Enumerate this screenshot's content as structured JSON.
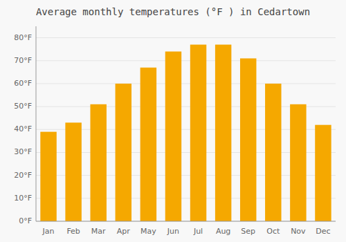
{
  "chart_data": {
    "type": "bar",
    "title": "Average monthly temperatures (°F ) in Cedartown",
    "categories": [
      "Jan",
      "Feb",
      "Mar",
      "Apr",
      "May",
      "Jun",
      "Jul",
      "Aug",
      "Sep",
      "Oct",
      "Nov",
      "Dec"
    ],
    "values": [
      39,
      43,
      51,
      60,
      67,
      74,
      77,
      77,
      71,
      60,
      51,
      42
    ],
    "color": "#F5A800",
    "ylim": [
      0,
      85
    ],
    "yticks": [
      {
        "value": 0,
        "label": "0°F"
      },
      {
        "value": 10,
        "label": "10°F"
      },
      {
        "value": 20,
        "label": "20°F"
      },
      {
        "value": 30,
        "label": "30°F"
      },
      {
        "value": 40,
        "label": "40°F"
      },
      {
        "value": 50,
        "label": "50°F"
      },
      {
        "value": 60,
        "label": "60°F"
      },
      {
        "value": 70,
        "label": "70°F"
      },
      {
        "value": 80,
        "label": "80°F"
      }
    ],
    "grid": true
  }
}
